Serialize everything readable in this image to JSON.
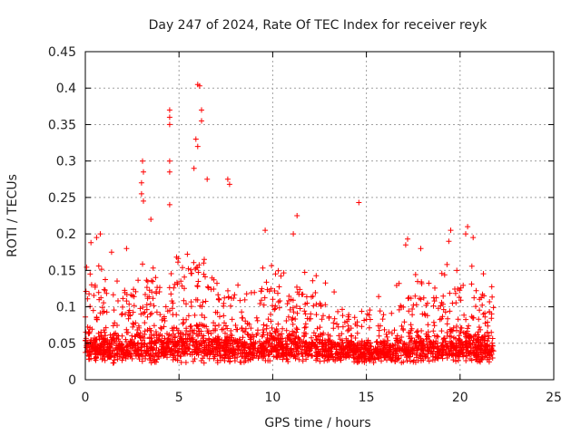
{
  "chart_data": {
    "type": "scatter",
    "title": "Day 247 of 2024, Rate Of TEC Index for receiver reyk",
    "xlabel": "GPS time / hours",
    "ylabel": "ROTI / TECUs",
    "xlim": [
      0,
      25
    ],
    "ylim": [
      0,
      0.45
    ],
    "xticks": [
      0,
      5,
      10,
      15,
      20,
      25
    ],
    "yticks": [
      0,
      0.05,
      0.1,
      0.15,
      0.2,
      0.25,
      0.3,
      0.35,
      0.4,
      0.45
    ],
    "xtick_labels": [
      "0",
      "5",
      "10",
      "15",
      "20",
      "25"
    ],
    "ytick_labels": [
      "0",
      "0.05",
      "0.1",
      "0.15",
      "0.2",
      "0.25",
      "0.3",
      "0.35",
      "0.4",
      "0.45"
    ],
    "grid": true,
    "marker": "+",
    "color": "#ff0000",
    "series": [
      {
        "name": "ROTI",
        "notes": "dense band from 0 to 21.8 h; baseline ~0.02-0.1; peaks near 5.8 h",
        "x_range": [
          0,
          21.8
        ],
        "highlights": [
          {
            "x": 4.5,
            "y": 0.37
          },
          {
            "x": 4.5,
            "y": 0.36
          },
          {
            "x": 4.5,
            "y": 0.35
          },
          {
            "x": 4.5,
            "y": 0.3
          },
          {
            "x": 4.5,
            "y": 0.285
          },
          {
            "x": 4.5,
            "y": 0.24
          },
          {
            "x": 6.0,
            "y": 0.405
          },
          {
            "x": 6.1,
            "y": 0.403
          },
          {
            "x": 6.2,
            "y": 0.37
          },
          {
            "x": 6.2,
            "y": 0.355
          },
          {
            "x": 5.9,
            "y": 0.33
          },
          {
            "x": 6.0,
            "y": 0.32
          },
          {
            "x": 5.8,
            "y": 0.29
          },
          {
            "x": 3.05,
            "y": 0.3
          },
          {
            "x": 3.1,
            "y": 0.285
          },
          {
            "x": 3.0,
            "y": 0.27
          },
          {
            "x": 3.0,
            "y": 0.255
          },
          {
            "x": 3.1,
            "y": 0.245
          },
          {
            "x": 6.5,
            "y": 0.275
          },
          {
            "x": 7.6,
            "y": 0.275
          },
          {
            "x": 7.7,
            "y": 0.268
          },
          {
            "x": 3.5,
            "y": 0.22
          },
          {
            "x": 14.6,
            "y": 0.243
          },
          {
            "x": 11.3,
            "y": 0.225
          },
          {
            "x": 11.1,
            "y": 0.2
          },
          {
            "x": 9.6,
            "y": 0.205
          },
          {
            "x": 20.4,
            "y": 0.21
          },
          {
            "x": 20.3,
            "y": 0.2
          },
          {
            "x": 20.7,
            "y": 0.195
          },
          {
            "x": 19.5,
            "y": 0.205
          },
          {
            "x": 19.4,
            "y": 0.19
          },
          {
            "x": 17.2,
            "y": 0.193
          },
          {
            "x": 17.1,
            "y": 0.185
          },
          {
            "x": 17.9,
            "y": 0.18
          },
          {
            "x": 19.3,
            "y": 0.158
          },
          {
            "x": 0.3,
            "y": 0.188
          },
          {
            "x": 0.6,
            "y": 0.195
          },
          {
            "x": 0.8,
            "y": 0.2
          },
          {
            "x": 1.4,
            "y": 0.175
          },
          {
            "x": 2.2,
            "y": 0.18
          }
        ]
      }
    ]
  }
}
